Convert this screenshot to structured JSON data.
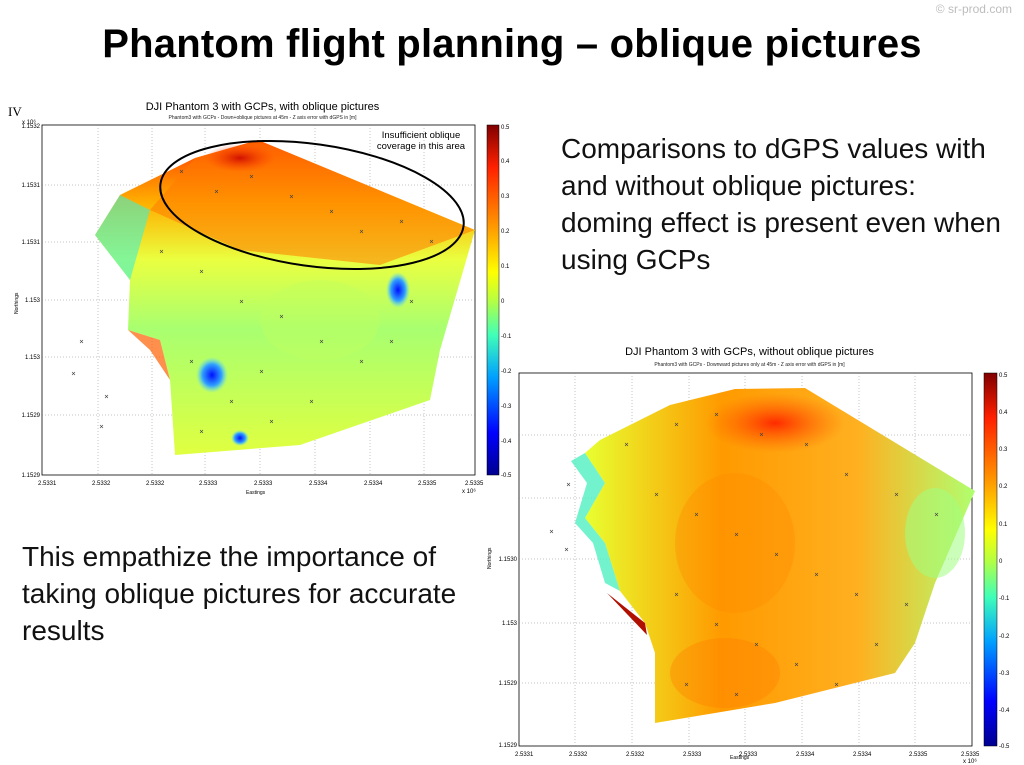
{
  "watermark": "© sr-prod.com",
  "slide_title": "Phantom flight planning – oblique pictures",
  "text_right": "Comparisons to dGPS values with and without oblique pictures: doming effect is present even when using GCPs",
  "text_left": "This empathize the importance of taking oblique pictures for accurate results",
  "colors": {
    "colormap": [
      "#00008f",
      "#0000ff",
      "#00a0ff",
      "#36e0ff",
      "#7fff7f",
      "#d8ff20",
      "#ffff00",
      "#ffa000",
      "#ff3c00",
      "#b40000"
    ]
  },
  "chart_data": [
    {
      "type": "heatmap",
      "panel_label": "IV",
      "title": "DJI Phantom 3 with GCPs, with oblique pictures",
      "subtitle": "Phantom3 with GCPs - Down+oblique pictures at 45m - Z axis error with dGPS in [m]",
      "xlabel": "Eastings",
      "ylabel": "Northings",
      "x_exponent": "x 10⁶",
      "y_exponent": "x 10⁶",
      "x_ticks": [
        "2.5331",
        "2.5332",
        "2.5332",
        "2.5333",
        "2.5333",
        "2.5334",
        "2.5334",
        "2.5335",
        "2.5335"
      ],
      "y_ticks": [
        "1.1532",
        "1.1531",
        "1.1531",
        "1.153",
        "1.153",
        "1.1529",
        "1.1529"
      ],
      "colorbar_range": [
        -0.5,
        0.5
      ],
      "colorbar_ticks": [
        "0.5",
        "0.4",
        "0.3",
        "0.2",
        "0.1",
        "0",
        "-0.1",
        "-0.2",
        "-0.3",
        "-0.4",
        "-0.5"
      ],
      "annotation": "Insufficient oblique coverage in this area"
    },
    {
      "type": "heatmap",
      "title": "DJI Phantom 3 with GCPs, without oblique pictures",
      "subtitle": "Phantom3 with GCPs - Downward pictures only at 45m - Z axis error with dGPS in [m]",
      "xlabel": "Eastings",
      "ylabel": "Northings",
      "x_exponent": "x 10⁶",
      "x_ticks": [
        "2.5331",
        "2.5332",
        "2.5332",
        "2.5333",
        "2.5333",
        "2.5334",
        "2.5334",
        "2.5335",
        "2.5335"
      ],
      "y_ticks": [
        "1.1530",
        "1.153",
        "1.1529",
        "1.1529"
      ],
      "colorbar_range": [
        -0.5,
        0.5
      ],
      "colorbar_ticks": [
        "0.5",
        "0.4",
        "0.3",
        "0.2",
        "0.1",
        "0",
        "-0.1",
        "-0.2",
        "-0.3",
        "-0.4",
        "-0.5"
      ]
    }
  ]
}
